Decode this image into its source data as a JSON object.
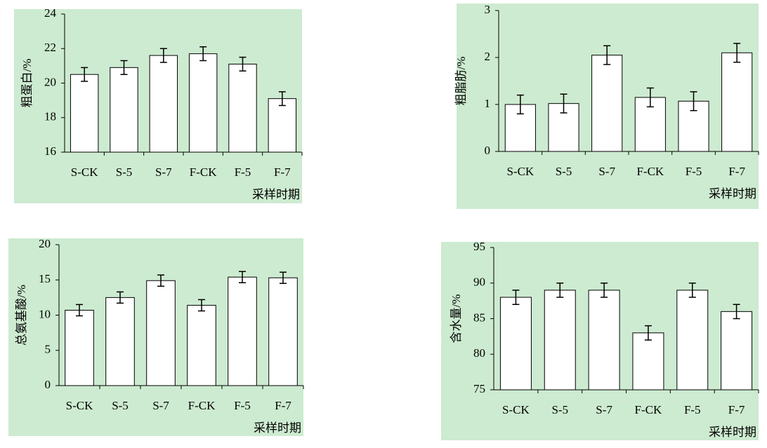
{
  "chart_data": [
    {
      "type": "bar",
      "ylabel": "粗蛋白/%",
      "xlabel": "采样时期",
      "categories": [
        "S-CK",
        "S-5",
        "S-7",
        "F-CK",
        "F-5",
        "F-7"
      ],
      "values": [
        20.5,
        20.9,
        21.6,
        21.7,
        21.1,
        19.1
      ],
      "errors": [
        0.4,
        0.4,
        0.4,
        0.4,
        0.4,
        0.4
      ],
      "color": "#ffffff",
      "ylim": [
        16,
        24
      ],
      "yticks": [
        16,
        18,
        20,
        22,
        24
      ]
    },
    {
      "type": "bar",
      "ylabel": "粗脂肪/%",
      "xlabel": "采样时期",
      "categories": [
        "S-CK",
        "S-5",
        "S-7",
        "F-CK",
        "F-5",
        "F-7"
      ],
      "values": [
        1.0,
        1.02,
        2.05,
        1.15,
        1.07,
        2.1
      ],
      "errors": [
        0.2,
        0.2,
        0.2,
        0.2,
        0.2,
        0.2
      ],
      "color": "#ffffff",
      "ylim": [
        0,
        3
      ],
      "yticks": [
        0,
        1,
        2,
        3
      ]
    },
    {
      "type": "bar",
      "ylabel": "总氨基酸/%",
      "xlabel": "采样时期",
      "categories": [
        "S-CK",
        "S-5",
        "S-7",
        "F-CK",
        "F-5",
        "F-7"
      ],
      "values": [
        10.7,
        12.5,
        14.9,
        11.4,
        15.4,
        15.3
      ],
      "errors": [
        0.8,
        0.8,
        0.8,
        0.8,
        0.8,
        0.8
      ],
      "color": "#ffffff",
      "ylim": [
        0,
        20
      ],
      "yticks": [
        0,
        5,
        10,
        15,
        20
      ]
    },
    {
      "type": "bar",
      "ylabel": "含水量/%",
      "xlabel": "采样时期",
      "categories": [
        "S-CK",
        "S-5",
        "S-7",
        "F-CK",
        "F-5",
        "F-7"
      ],
      "values": [
        88,
        89,
        89,
        83,
        89,
        86
      ],
      "errors": [
        1,
        1,
        1,
        1,
        1,
        1
      ],
      "color": "#ffffff",
      "ylim": [
        75,
        95
      ],
      "yticks": [
        75,
        80,
        85,
        90,
        95
      ]
    }
  ]
}
